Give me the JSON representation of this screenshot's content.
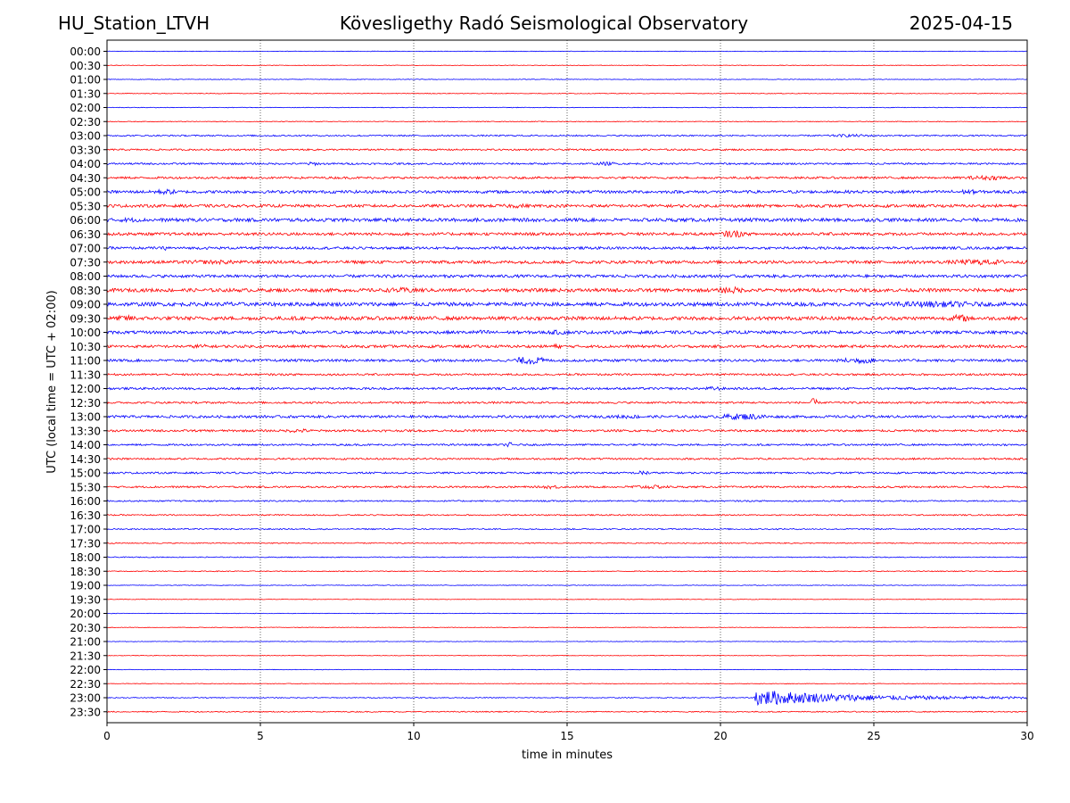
{
  "header": {
    "station": "HU_Station_LTVH",
    "observatory": "Kövesligethy Radó Seismological Observatory",
    "date": "2025-04-15"
  },
  "chart_data": {
    "type": "line",
    "title": "Kövesligethy Radó Seismological Observatory",
    "xlabel": "time in minutes",
    "ylabel": "UTC (local time = UTC + 02:00)",
    "xlim": [
      0,
      30
    ],
    "xticks": [
      0,
      5,
      10,
      15,
      20,
      25,
      30
    ],
    "grid": "vertical dotted lines at 5-minute ticks",
    "series_colors": [
      "#0000ff",
      "#ff0000"
    ],
    "color_rule": "rows alternate blue (:00) and red (:30)",
    "rows": [
      "00:00",
      "00:30",
      "01:00",
      "01:30",
      "02:00",
      "02:30",
      "03:00",
      "03:30",
      "04:00",
      "04:30",
      "05:00",
      "05:30",
      "06:00",
      "06:30",
      "07:00",
      "07:30",
      "08:00",
      "08:30",
      "09:00",
      "09:30",
      "10:00",
      "10:30",
      "11:00",
      "11:30",
      "12:00",
      "12:30",
      "13:00",
      "13:30",
      "14:00",
      "14:30",
      "15:00",
      "15:30",
      "16:00",
      "16:30",
      "17:00",
      "17:30",
      "18:00",
      "18:30",
      "19:00",
      "19:30",
      "20:00",
      "20:30",
      "21:00",
      "21:30",
      "22:00",
      "22:30",
      "23:00",
      "23:30"
    ],
    "noise_level": [
      0.3,
      0.3,
      0.35,
      0.4,
      0.35,
      0.4,
      0.8,
      0.9,
      1.0,
      1.2,
      1.6,
      1.6,
      1.9,
      1.6,
      1.4,
      1.7,
      1.6,
      1.9,
      2.1,
      2.0,
      1.7,
      1.5,
      1.4,
      1.1,
      1.2,
      1.1,
      1.4,
      1.2,
      1.0,
      1.0,
      1.0,
      1.0,
      0.8,
      0.7,
      0.7,
      0.6,
      0.5,
      0.5,
      0.35,
      0.3,
      0.3,
      0.3,
      0.3,
      0.3,
      0.3,
      0.3,
      0.5,
      0.6
    ],
    "events": [
      {
        "row": "03:00",
        "start_min": 23.0,
        "end_min": 25.5,
        "level": 1.6
      },
      {
        "row": "04:00",
        "start_min": 6.2,
        "end_min": 7.2,
        "level": 2.0
      },
      {
        "row": "04:00",
        "start_min": 15.7,
        "end_min": 16.9,
        "level": 2.0
      },
      {
        "row": "04:30",
        "start_min": 27.5,
        "end_min": 30.0,
        "level": 2.6
      },
      {
        "row": "05:00",
        "start_min": 1.2,
        "end_min": 2.6,
        "level": 3.0
      },
      {
        "row": "05:00",
        "start_min": 27.0,
        "end_min": 29.0,
        "level": 2.6
      },
      {
        "row": "05:30",
        "start_min": 12.5,
        "end_min": 14.2,
        "level": 2.4
      },
      {
        "row": "06:00",
        "start_min": 0.0,
        "end_min": 1.5,
        "level": 2.6
      },
      {
        "row": "06:30",
        "start_min": 19.8,
        "end_min": 21.0,
        "level": 4.0
      },
      {
        "row": "07:00",
        "start_min": 1.7,
        "end_min": 2.2,
        "level": 2.6
      },
      {
        "row": "07:30",
        "start_min": 26.8,
        "end_min": 30.0,
        "level": 3.2
      },
      {
        "row": "07:30",
        "start_min": 1.5,
        "end_min": 5.5,
        "level": 2.4
      },
      {
        "row": "08:30",
        "start_min": 8.5,
        "end_min": 11.0,
        "level": 3.0
      },
      {
        "row": "08:30",
        "start_min": 19.7,
        "end_min": 21.0,
        "level": 4.0
      },
      {
        "row": "09:00",
        "start_min": 3.5,
        "end_min": 4.5,
        "level": 3.0
      },
      {
        "row": "09:00",
        "start_min": 24.0,
        "end_min": 30.0,
        "level": 3.4
      },
      {
        "row": "09:30",
        "start_min": 0.0,
        "end_min": 1.3,
        "level": 3.4
      },
      {
        "row": "09:30",
        "start_min": 27.3,
        "end_min": 28.3,
        "level": 4.2
      },
      {
        "row": "10:00",
        "start_min": 11.5,
        "end_min": 13.0,
        "level": 2.6
      },
      {
        "row": "10:00",
        "start_min": 14.0,
        "end_min": 15.5,
        "level": 2.6
      },
      {
        "row": "10:30",
        "start_min": 2.6,
        "end_min": 3.5,
        "level": 2.6
      },
      {
        "row": "10:30",
        "start_min": 14.2,
        "end_min": 15.0,
        "level": 2.6
      },
      {
        "row": "11:00",
        "start_min": 13.0,
        "end_min": 14.6,
        "level": 4.4
      },
      {
        "row": "11:00",
        "start_min": 23.5,
        "end_min": 25.5,
        "level": 3.4
      },
      {
        "row": "12:00",
        "start_min": 19.3,
        "end_min": 20.3,
        "level": 2.4
      },
      {
        "row": "12:30",
        "start_min": 22.9,
        "end_min": 23.2,
        "level": 5.0
      },
      {
        "row": "13:00",
        "start_min": 19.5,
        "end_min": 22.0,
        "level": 3.6
      },
      {
        "row": "13:00",
        "start_min": 16.0,
        "end_min": 18.0,
        "level": 2.2
      },
      {
        "row": "13:30",
        "start_min": 5.5,
        "end_min": 7.0,
        "level": 2.2
      },
      {
        "row": "14:00",
        "start_min": 12.9,
        "end_min": 13.3,
        "level": 3.0
      },
      {
        "row": "15:00",
        "start_min": 17.0,
        "end_min": 18.0,
        "level": 2.4
      },
      {
        "row": "15:30",
        "start_min": 14.0,
        "end_min": 15.0,
        "level": 2.2
      },
      {
        "row": "15:30",
        "start_min": 16.5,
        "end_min": 18.8,
        "level": 2.2
      },
      {
        "row": "23:00",
        "start_min": 21.1,
        "end_min": 30.0,
        "level": 9.0
      }
    ]
  }
}
